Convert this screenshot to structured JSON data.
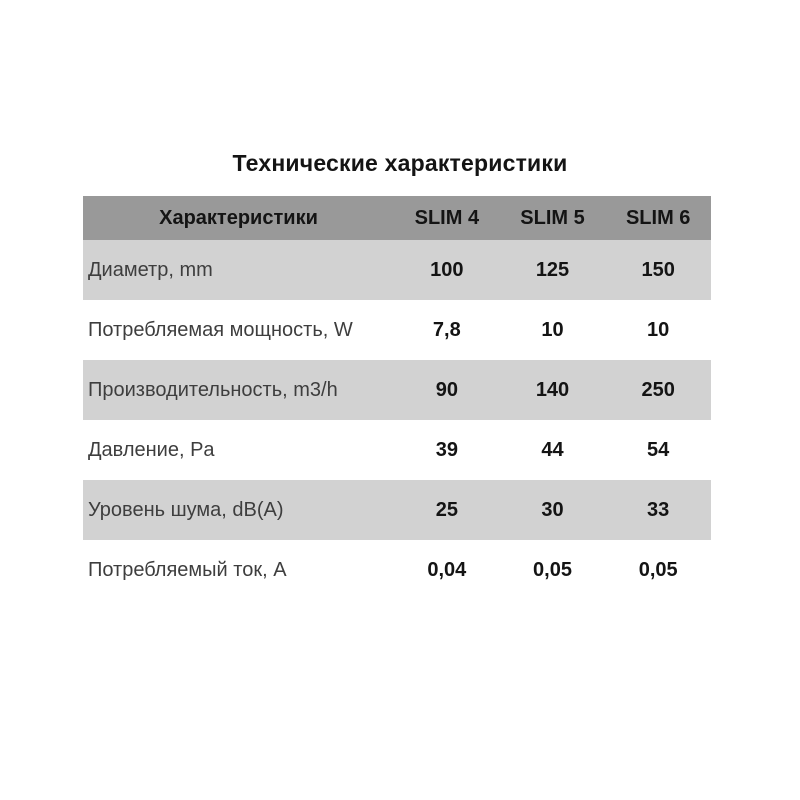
{
  "chart_data": {
    "type": "table",
    "title": "Технические характеристики",
    "columns": [
      "Характеристики",
      "SLIM 4",
      "SLIM 5",
      "SLIM 6"
    ],
    "rows": [
      [
        "Диаметр, mm",
        "100",
        "125",
        "150"
      ],
      [
        "Потребляемая мощность, W",
        "7,8",
        "10",
        "10"
      ],
      [
        "Производительность, m3/h",
        "90",
        "140",
        "250"
      ],
      [
        "Давление, Pa",
        "39",
        "44",
        "54"
      ],
      [
        "Уровень шума, dB(A)",
        "25",
        "30",
        "33"
      ],
      [
        "Потребляемый ток, А",
        "0,04",
        "0,05",
        "0,05"
      ]
    ],
    "layout_hints": {
      "header_style": "gray band, bold, centered",
      "body_rows": "alternating gray/white, labels left-aligned, values centered bold",
      "grid": "none (no cell borders)"
    }
  },
  "colors": {
    "header_bg": "#999999",
    "row_alt_bg": "#d2d2d2",
    "page_bg": "#ffffff",
    "title_text": "#141414",
    "label_text": "#3e3e3e",
    "value_text": "#141414"
  }
}
